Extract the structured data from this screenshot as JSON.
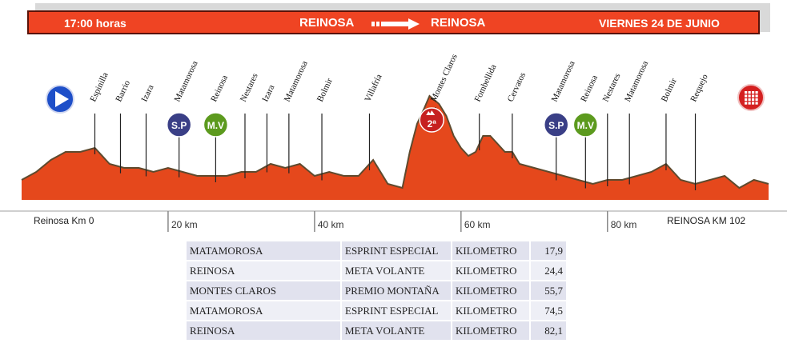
{
  "header": {
    "time": "17:00 horas",
    "from": "REINOSA",
    "to": "REINOSA",
    "date": "VIERNES 24 DE JUNIO"
  },
  "colors": {
    "accent": "#ef4423",
    "header_border": "#5a1208",
    "profile_fill": "#e5481c",
    "sprint_badge": "#3a3f86",
    "flying_goal_badge": "#5c9a1e",
    "mountain_badge": "#c62020",
    "start_badge": "#1e4fc8"
  },
  "chart_data": {
    "type": "area",
    "xlabel": "",
    "ylabel": "",
    "xlim": [
      0,
      102
    ],
    "ticks": [
      {
        "km": 20,
        "label": "20 km"
      },
      {
        "km": 40,
        "label": "40 km"
      },
      {
        "km": 60,
        "label": "60 km"
      },
      {
        "km": 80,
        "label": "80 km"
      }
    ],
    "start_label": "Reinosa Km 0",
    "finish_label": "REINOSA KM 102",
    "start_icon": "play-icon",
    "finish_icon": "checkered-flag-icon",
    "profile": {
      "x": [
        0,
        2,
        4,
        6,
        8,
        10,
        12,
        14,
        16,
        18,
        20,
        22,
        24,
        26,
        28,
        30,
        32,
        34,
        36,
        38,
        40,
        42,
        44,
        46,
        48,
        50,
        52,
        53,
        54,
        55,
        55.7,
        57,
        58,
        59,
        60,
        61,
        62,
        63,
        64,
        65,
        66,
        67,
        68,
        70,
        72,
        74,
        76,
        78,
        80,
        82,
        84,
        86,
        88,
        90,
        92,
        94,
        96,
        98,
        100,
        102
      ],
      "y": [
        0.25,
        0.35,
        0.5,
        0.6,
        0.6,
        0.65,
        0.45,
        0.4,
        0.4,
        0.35,
        0.4,
        0.35,
        0.3,
        0.3,
        0.3,
        0.35,
        0.35,
        0.45,
        0.4,
        0.45,
        0.3,
        0.35,
        0.3,
        0.3,
        0.5,
        0.2,
        0.15,
        0.6,
        0.95,
        1.15,
        1.3,
        1.2,
        1.05,
        0.8,
        0.65,
        0.55,
        0.6,
        0.8,
        0.8,
        0.7,
        0.6,
        0.6,
        0.45,
        0.4,
        0.35,
        0.3,
        0.25,
        0.2,
        0.25,
        0.25,
        0.3,
        0.35,
        0.45,
        0.25,
        0.2,
        0.25,
        0.3,
        0.15,
        0.25,
        0.2
      ]
    },
    "places": [
      {
        "name": "Espinilla",
        "km": 10
      },
      {
        "name": "Barrio",
        "km": 13.5
      },
      {
        "name": "Izara",
        "km": 17
      },
      {
        "name": "Matamorosa",
        "km": 21.5
      },
      {
        "name": "Reinosa",
        "km": 26.5
      },
      {
        "name": "Nestares",
        "km": 30.5
      },
      {
        "name": "Izara",
        "km": 33.5
      },
      {
        "name": "Matamorosa",
        "km": 36.5
      },
      {
        "name": "Bolmir",
        "km": 41
      },
      {
        "name": "Villafría",
        "km": 47.5
      },
      {
        "name": "Montes Claros",
        "km": 56.5
      },
      {
        "name": "Fombellida",
        "km": 62.5
      },
      {
        "name": "Cervatos",
        "km": 67
      },
      {
        "name": "Matamorosa",
        "km": 73
      },
      {
        "name": "Reinosa",
        "km": 77
      },
      {
        "name": "Nestares",
        "km": 80
      },
      {
        "name": "Matamorosa",
        "km": 83
      },
      {
        "name": "Bolmir",
        "km": 88
      },
      {
        "name": "Requejo",
        "km": 92
      }
    ],
    "badges": [
      {
        "label": "S.P",
        "km": 21.5,
        "kind": "sprint"
      },
      {
        "label": "M.V",
        "km": 26.5,
        "kind": "flying_goal"
      },
      {
        "label": "2ª",
        "km": 56,
        "kind": "mountain"
      },
      {
        "label": "S.P",
        "km": 73,
        "kind": "sprint"
      },
      {
        "label": "M.V",
        "km": 77,
        "kind": "flying_goal"
      }
    ]
  },
  "results": [
    {
      "place": "MATAMOROSA",
      "type": "ESPRINT ESPECIAL",
      "unit": "KILOMETRO",
      "km": "17,9"
    },
    {
      "place": "REINOSA",
      "type": "META VOLANTE",
      "unit": "KILOMETRO",
      "km": "24,4"
    },
    {
      "place": "MONTES CLAROS",
      "type": "PREMIO MONTAÑA",
      "unit": "KILOMETRO",
      "km": "55,7"
    },
    {
      "place": "MATAMOROSA",
      "type": "ESPRINT ESPECIAL",
      "unit": "KILOMETRO",
      "km": "74,5"
    },
    {
      "place": "REINOSA",
      "type": "META VOLANTE",
      "unit": "KILOMETRO",
      "km": "82,1"
    }
  ]
}
